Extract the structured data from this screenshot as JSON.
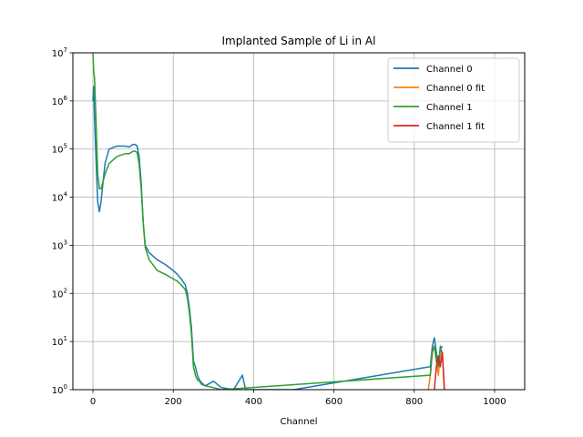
{
  "chart_data": {
    "type": "line",
    "title": "Implanted Sample of Li in Al",
    "xlabel": "Channel",
    "ylabel": "",
    "yscale": "log",
    "xlim": [
      -50,
      1075
    ],
    "ylim": [
      1,
      10000000
    ],
    "grid": true,
    "legend_position": "top-right",
    "xticks": [
      0,
      200,
      400,
      600,
      800,
      1000
    ],
    "yticks": [
      1,
      10,
      100,
      1000,
      10000,
      100000,
      1000000,
      10000000
    ],
    "ytick_labels": [
      {
        "base": "10",
        "exp": "0"
      },
      {
        "base": "10",
        "exp": "1"
      },
      {
        "base": "10",
        "exp": "2"
      },
      {
        "base": "10",
        "exp": "3"
      },
      {
        "base": "10",
        "exp": "4"
      },
      {
        "base": "10",
        "exp": "5"
      },
      {
        "base": "10",
        "exp": "6"
      },
      {
        "base": "10",
        "exp": "7"
      }
    ],
    "series": [
      {
        "name": "Channel 0",
        "color": "#1f77b4",
        "x": [
          0,
          2,
          4,
          8,
          12,
          16,
          20,
          30,
          40,
          60,
          80,
          90,
          100,
          105,
          110,
          115,
          120,
          125,
          130,
          140,
          160,
          180,
          200,
          210,
          220,
          230,
          235,
          240,
          245,
          248,
          250,
          255,
          260,
          265,
          270,
          280,
          300,
          320,
          350,
          372,
          380,
          400,
          450,
          500,
          840,
          845,
          850,
          855,
          860,
          865,
          870
        ],
        "y": [
          1000000,
          2000000,
          400000,
          50000,
          8000,
          5000,
          8000,
          50000,
          100000,
          115000,
          115000,
          110000,
          125000,
          125000,
          115000,
          70000,
          20000,
          3000,
          1000,
          700,
          500,
          400,
          300,
          250,
          200,
          150,
          100,
          50,
          20,
          8,
          4,
          3,
          2,
          1.6,
          1.4,
          1.2,
          1.5,
          1.1,
          1,
          2,
          1,
          1,
          1,
          1,
          3,
          8,
          12,
          6,
          3,
          8,
          5
        ]
      },
      {
        "name": "Channel 0 fit",
        "color": "#ff7f0e",
        "x": [
          835,
          840,
          845,
          850,
          855,
          860,
          865,
          870,
          875
        ],
        "y": [
          1,
          2,
          6,
          8,
          4,
          2,
          5,
          6,
          1
        ]
      },
      {
        "name": "Channel 1",
        "color": "#2ca02c",
        "x": [
          0,
          2,
          4,
          8,
          12,
          16,
          20,
          30,
          40,
          60,
          80,
          90,
          100,
          105,
          110,
          115,
          120,
          125,
          130,
          140,
          160,
          180,
          200,
          210,
          220,
          230,
          235,
          240,
          245,
          248,
          250,
          255,
          260,
          265,
          270,
          280,
          300,
          320,
          840,
          845,
          850,
          855,
          860,
          865,
          870
        ],
        "y": [
          10000000,
          4000000,
          3000000,
          300000,
          30000,
          15000,
          15000,
          30000,
          50000,
          70000,
          80000,
          80000,
          90000,
          90000,
          85000,
          50000,
          15000,
          3000,
          900,
          500,
          300,
          250,
          200,
          180,
          150,
          120,
          80,
          40,
          15,
          6,
          3,
          2,
          1.6,
          1.5,
          1.3,
          1.2,
          1.1,
          1,
          2,
          6,
          8,
          4,
          3,
          7,
          8
        ]
      },
      {
        "name": "Channel 1 fit",
        "color": "#d62728",
        "x": [
          850,
          855,
          860,
          865,
          870,
          875
        ],
        "y": [
          1,
          3,
          5,
          3,
          6,
          1
        ]
      }
    ]
  }
}
